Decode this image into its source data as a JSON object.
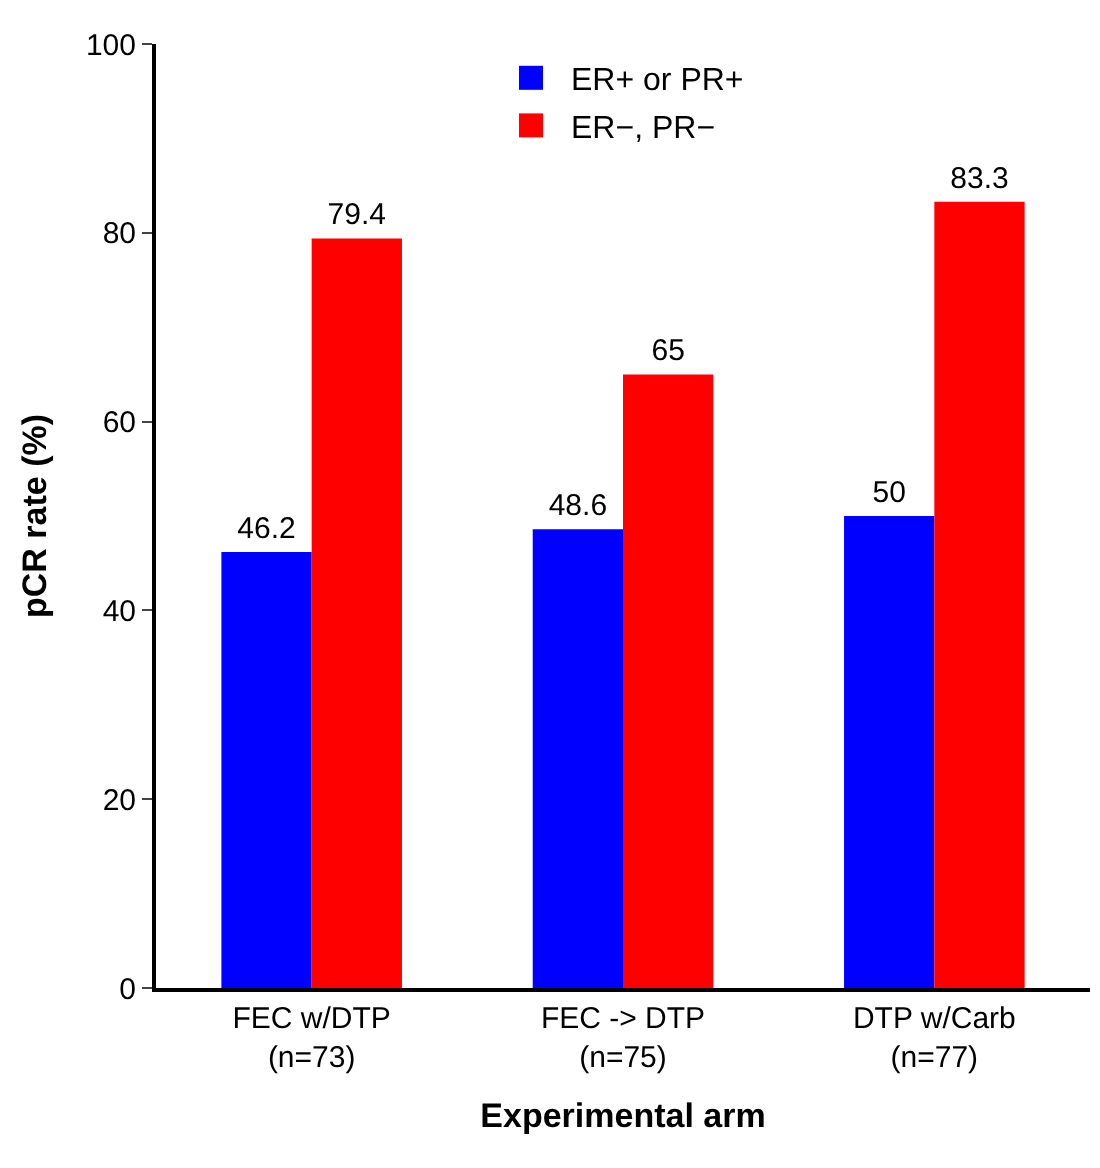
{
  "chart_data": {
    "type": "bar",
    "xlabel": "Experimental arm",
    "ylabel": "pCR rate (%)",
    "categories": [
      "FEC w/DTP\n(n=73)",
      "FEC -> DTP\n(n=75)",
      "DTP w/Carb\n(n=77)"
    ],
    "series": [
      {
        "name": "ER+ or PR+",
        "color": "#0000ff",
        "values": [
          46.2,
          48.6,
          50
        ]
      },
      {
        "name": "ER−, PR−",
        "color": "#ff0000",
        "values": [
          79.4,
          65,
          83.3
        ]
      }
    ],
    "ylim": [
      0,
      100
    ],
    "yticks": [
      0,
      20,
      40,
      60,
      80,
      100
    ],
    "data_labels": true,
    "legend": "top"
  }
}
